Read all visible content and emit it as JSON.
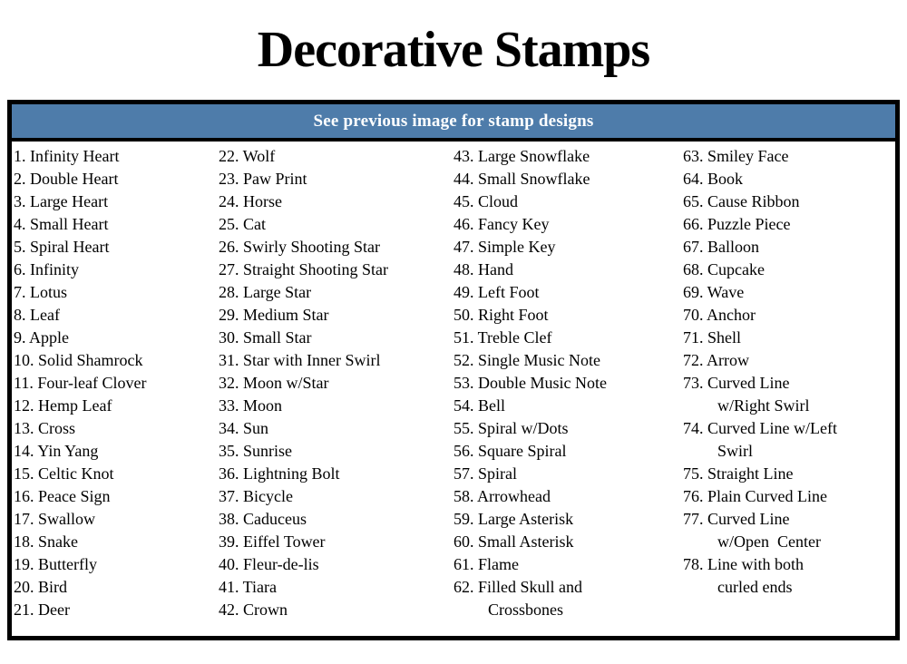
{
  "page": {
    "title": "Decorative Stamps"
  },
  "table": {
    "header": "See previous image for stamp designs",
    "colors": {
      "header_bg": "#4e7caa",
      "header_text": "#ffffff",
      "border": "#000000"
    },
    "columns": [
      [
        {
          "n": "1.",
          "lines": [
            "Infinity Heart"
          ]
        },
        {
          "n": "2.",
          "lines": [
            "Double Heart"
          ]
        },
        {
          "n": "3.",
          "lines": [
            "Large Heart"
          ]
        },
        {
          "n": "4.",
          "lines": [
            "Small Heart"
          ]
        },
        {
          "n": "5.",
          "lines": [
            "Spiral Heart"
          ]
        },
        {
          "n": "6.",
          "lines": [
            "Infinity"
          ]
        },
        {
          "n": "7.",
          "lines": [
            "Lotus"
          ]
        },
        {
          "n": "8.",
          "lines": [
            "Leaf"
          ]
        },
        {
          "n": "9.",
          "lines": [
            "Apple"
          ]
        },
        {
          "n": "10.",
          "lines": [
            "Solid Shamrock"
          ]
        },
        {
          "n": "11.",
          "lines": [
            "Four-leaf Clover"
          ]
        },
        {
          "n": "12.",
          "lines": [
            "Hemp Leaf"
          ]
        },
        {
          "n": "13.",
          "lines": [
            "Cross"
          ]
        },
        {
          "n": "14.",
          "lines": [
            "Yin Yang"
          ]
        },
        {
          "n": "15.",
          "lines": [
            "Celtic Knot"
          ]
        },
        {
          "n": "16.",
          "lines": [
            "Peace Sign"
          ]
        },
        {
          "n": "17.",
          "lines": [
            "Swallow"
          ]
        },
        {
          "n": "18.",
          "lines": [
            "Snake"
          ]
        },
        {
          "n": "19.",
          "lines": [
            "Butterfly"
          ]
        },
        {
          "n": "20.",
          "lines": [
            "Bird"
          ]
        },
        {
          "n": "21.",
          "lines": [
            "Deer"
          ]
        }
      ],
      [
        {
          "n": "22.",
          "lines": [
            "Wolf"
          ]
        },
        {
          "n": "23.",
          "lines": [
            "Paw Print"
          ]
        },
        {
          "n": "24.",
          "lines": [
            "Horse"
          ]
        },
        {
          "n": "25.",
          "lines": [
            "Cat"
          ]
        },
        {
          "n": "26.",
          "lines": [
            "Swirly Shooting Star"
          ]
        },
        {
          "n": "27.",
          "lines": [
            "Straight Shooting Star"
          ]
        },
        {
          "n": "28.",
          "lines": [
            "Large Star"
          ]
        },
        {
          "n": "29.",
          "lines": [
            "Medium Star"
          ]
        },
        {
          "n": "30.",
          "lines": [
            "Small Star"
          ]
        },
        {
          "n": "31.",
          "lines": [
            "Star with Inner Swirl"
          ]
        },
        {
          "n": "32.",
          "lines": [
            "Moon w/Star"
          ]
        },
        {
          "n": "33.",
          "lines": [
            "Moon"
          ]
        },
        {
          "n": "34.",
          "lines": [
            "Sun"
          ]
        },
        {
          "n": "35.",
          "lines": [
            "Sunrise"
          ]
        },
        {
          "n": "36.",
          "lines": [
            "Lightning Bolt"
          ]
        },
        {
          "n": "37.",
          "lines": [
            "Bicycle"
          ]
        },
        {
          "n": "38.",
          "lines": [
            "Caduceus"
          ]
        },
        {
          "n": "39.",
          "lines": [
            "Eiffel Tower"
          ]
        },
        {
          "n": "40.",
          "lines": [
            "Fleur-de-lis"
          ]
        },
        {
          "n": "41.",
          "lines": [
            "Tiara"
          ]
        },
        {
          "n": "42.",
          "lines": [
            "Crown"
          ]
        }
      ],
      [
        {
          "n": "43.",
          "lines": [
            "Large Snowflake"
          ]
        },
        {
          "n": "44.",
          "lines": [
            "Small Snowflake"
          ]
        },
        {
          "n": "45.",
          "lines": [
            "Cloud"
          ]
        },
        {
          "n": "46.",
          "lines": [
            "Fancy Key"
          ]
        },
        {
          "n": "47.",
          "lines": [
            "Simple Key"
          ]
        },
        {
          "n": "48.",
          "lines": [
            "Hand"
          ]
        },
        {
          "n": "49.",
          "lines": [
            "Left Foot"
          ]
        },
        {
          "n": "50.",
          "lines": [
            "Right Foot"
          ]
        },
        {
          "n": "51.",
          "lines": [
            "Treble Clef"
          ]
        },
        {
          "n": "52.",
          "lines": [
            "Single Music Note"
          ]
        },
        {
          "n": "53.",
          "lines": [
            "Double Music Note"
          ]
        },
        {
          "n": "54.",
          "lines": [
            "Bell"
          ]
        },
        {
          "n": "55.",
          "lines": [
            "Spiral w/Dots"
          ]
        },
        {
          "n": "56.",
          "lines": [
            "Square Spiral"
          ]
        },
        {
          "n": "57.",
          "lines": [
            "Spiral"
          ]
        },
        {
          "n": "58.",
          "lines": [
            "Arrowhead"
          ]
        },
        {
          "n": "59.",
          "lines": [
            "Large Asterisk"
          ]
        },
        {
          "n": "60.",
          "lines": [
            "Small Asterisk"
          ]
        },
        {
          "n": "61.",
          "lines": [
            "Flame"
          ]
        },
        {
          "n": "62.",
          "lines": [
            "Filled Skull and",
            "Crossbones"
          ]
        }
      ],
      [
        {
          "n": "63.",
          "lines": [
            "Smiley Face"
          ]
        },
        {
          "n": "64.",
          "lines": [
            "Book"
          ]
        },
        {
          "n": "65.",
          "lines": [
            "Cause Ribbon"
          ]
        },
        {
          "n": "66.",
          "lines": [
            "Puzzle Piece"
          ]
        },
        {
          "n": "67.",
          "lines": [
            "Balloon"
          ]
        },
        {
          "n": "68.",
          "lines": [
            "Cupcake"
          ]
        },
        {
          "n": "69.",
          "lines": [
            "Wave"
          ]
        },
        {
          "n": "70.",
          "lines": [
            "Anchor"
          ]
        },
        {
          "n": "71.",
          "lines": [
            "Shell"
          ]
        },
        {
          "n": "72.",
          "lines": [
            "Arrow"
          ]
        },
        {
          "n": "73.",
          "lines": [
            "Curved Line",
            "w/Right Swirl"
          ]
        },
        {
          "n": "74.",
          "lines": [
            "Curved Line w/Left",
            "Swirl"
          ]
        },
        {
          "n": "75.",
          "lines": [
            "Straight Line"
          ]
        },
        {
          "n": "76.",
          "lines": [
            "Plain Curved Line"
          ]
        },
        {
          "n": "77.",
          "lines": [
            "Curved Line",
            "w/Open  Center"
          ]
        },
        {
          "n": "78.",
          "lines": [
            "Line with both",
            "curled ends"
          ]
        }
      ]
    ]
  }
}
